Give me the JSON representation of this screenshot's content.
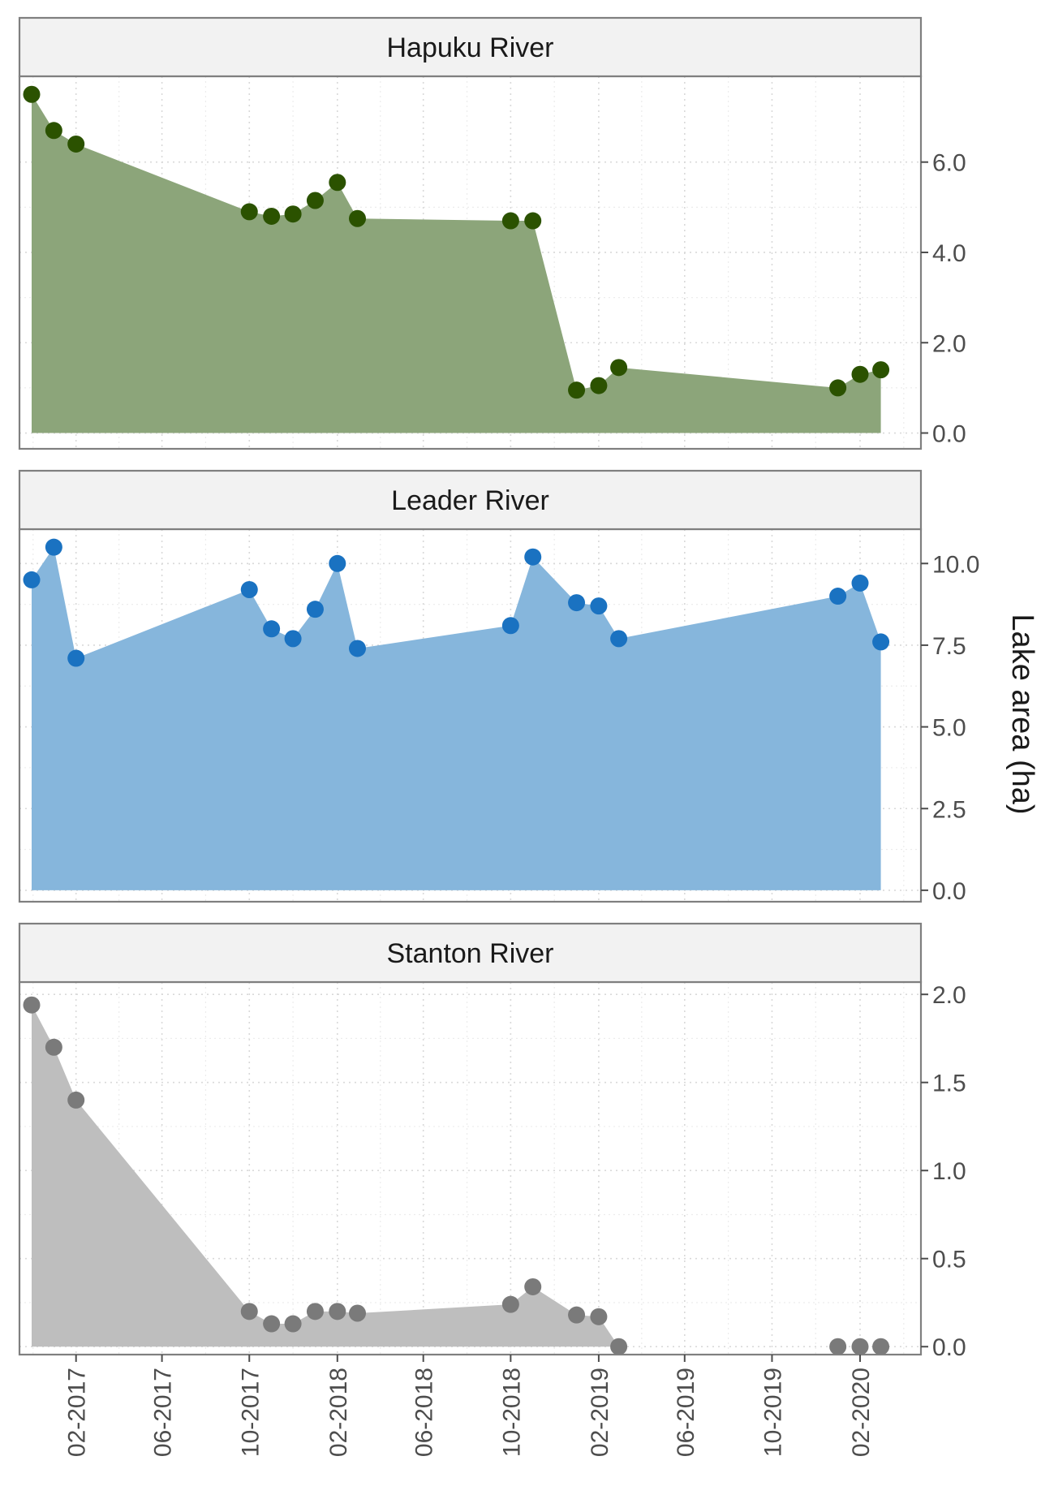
{
  "chart_data": {
    "type": "area",
    "ylabel": "Lake area (ha)",
    "xlabel": "",
    "x_tick_labels": [
      "02-2017",
      "06-2017",
      "10-2017",
      "02-2018",
      "06-2018",
      "10-2018",
      "02-2019",
      "06-2019",
      "10-2019",
      "02-2020"
    ],
    "x_tick_dates": [
      "2017-02-01",
      "2017-06-01",
      "2017-10-01",
      "2018-02-01",
      "2018-06-01",
      "2018-10-01",
      "2019-02-01",
      "2019-06-01",
      "2019-10-01",
      "2020-02-01"
    ],
    "xlim": [
      "2016-11-14",
      "2020-04-26"
    ],
    "grid": true,
    "legend": "none",
    "panels": [
      {
        "title": "Hapuku River",
        "fill_color": "#8ca57a",
        "point_color": "#2b5200",
        "ylim": [
          -0.35,
          7.9
        ],
        "y_ticks": [
          0,
          2,
          4,
          6
        ],
        "y_tick_labels": [
          "0.0",
          "2.0",
          "4.0",
          "6.0"
        ],
        "points": [
          {
            "x": "2016-12-01",
            "y": 7.5
          },
          {
            "x": "2017-01-01",
            "y": 6.7
          },
          {
            "x": "2017-02-01",
            "y": 6.4
          },
          {
            "x": "2017-10-01",
            "y": 4.9
          },
          {
            "x": "2017-11-01",
            "y": 4.8
          },
          {
            "x": "2017-12-01",
            "y": 4.85
          },
          {
            "x": "2018-01-01",
            "y": 5.15
          },
          {
            "x": "2018-02-01",
            "y": 5.55
          },
          {
            "x": "2018-03-01",
            "y": 4.75
          },
          {
            "x": "2018-10-01",
            "y": 4.7
          },
          {
            "x": "2018-11-01",
            "y": 4.7
          },
          {
            "x": "2019-01-01",
            "y": 0.95
          },
          {
            "x": "2019-02-01",
            "y": 1.05
          },
          {
            "x": "2019-03-01",
            "y": 1.45
          },
          {
            "x": "2020-01-01",
            "y": 1.0
          },
          {
            "x": "2020-02-01",
            "y": 1.3
          },
          {
            "x": "2020-03-01",
            "y": 1.4
          }
        ]
      },
      {
        "title": "Leader River",
        "fill_color": "#86b6dc",
        "point_color": "#1a72c1",
        "ylim": [
          -0.35,
          11.05
        ],
        "y_ticks": [
          0,
          2.5,
          5,
          7.5,
          10
        ],
        "y_tick_labels": [
          "0.0",
          "2.5",
          "5.0",
          "7.5",
          "10.0"
        ],
        "points": [
          {
            "x": "2016-12-01",
            "y": 9.5
          },
          {
            "x": "2017-01-01",
            "y": 10.5
          },
          {
            "x": "2017-02-01",
            "y": 7.1
          },
          {
            "x": "2017-10-01",
            "y": 9.2
          },
          {
            "x": "2017-11-01",
            "y": 8.0
          },
          {
            "x": "2017-12-01",
            "y": 7.7
          },
          {
            "x": "2018-01-01",
            "y": 8.6
          },
          {
            "x": "2018-02-01",
            "y": 10.0
          },
          {
            "x": "2018-03-01",
            "y": 7.4
          },
          {
            "x": "2018-10-01",
            "y": 8.1
          },
          {
            "x": "2018-11-01",
            "y": 10.2
          },
          {
            "x": "2019-01-01",
            "y": 8.8
          },
          {
            "x": "2019-02-01",
            "y": 8.7
          },
          {
            "x": "2019-03-01",
            "y": 7.7
          },
          {
            "x": "2020-01-01",
            "y": 9.0
          },
          {
            "x": "2020-02-01",
            "y": 9.4
          },
          {
            "x": "2020-03-01",
            "y": 7.6
          }
        ]
      },
      {
        "title": "Stanton River",
        "fill_color": "#bebebe",
        "point_color": "#7a7a7a",
        "ylim": [
          -0.045,
          2.07
        ],
        "y_ticks": [
          0,
          0.5,
          1,
          1.5,
          2
        ],
        "y_tick_labels": [
          "0.0",
          "0.5",
          "1.0",
          "1.5",
          "2.0"
        ],
        "points": [
          {
            "x": "2016-12-01",
            "y": 1.94
          },
          {
            "x": "2017-01-01",
            "y": 1.7
          },
          {
            "x": "2017-02-01",
            "y": 1.4
          },
          {
            "x": "2017-10-01",
            "y": 0.2
          },
          {
            "x": "2017-11-01",
            "y": 0.13
          },
          {
            "x": "2017-12-01",
            "y": 0.13
          },
          {
            "x": "2018-01-01",
            "y": 0.2
          },
          {
            "x": "2018-02-01",
            "y": 0.2
          },
          {
            "x": "2018-03-01",
            "y": 0.19
          },
          {
            "x": "2018-10-01",
            "y": 0.24
          },
          {
            "x": "2018-11-01",
            "y": 0.34
          },
          {
            "x": "2019-01-01",
            "y": 0.18
          },
          {
            "x": "2019-02-01",
            "y": 0.17
          },
          {
            "x": "2019-03-01",
            "y": 0.0
          },
          {
            "x": "2020-01-01",
            "y": 0.0
          },
          {
            "x": "2020-02-01",
            "y": 0.0
          },
          {
            "x": "2020-03-01",
            "y": 0.0
          }
        ]
      }
    ]
  }
}
